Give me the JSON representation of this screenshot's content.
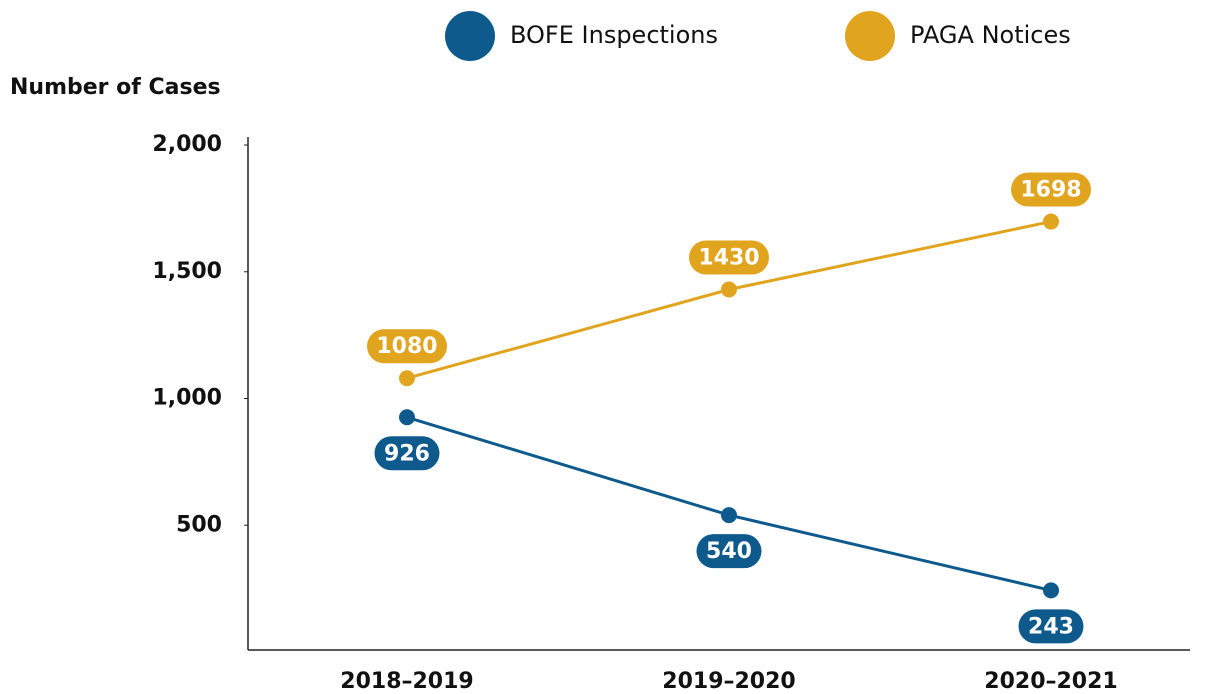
{
  "chart_data": {
    "type": "line",
    "y_label": "Number of Cases",
    "categories": [
      "2018–2019",
      "2019–2020",
      "2020–2021"
    ],
    "series": [
      {
        "name": "BOFE Inspections",
        "color": "#0f5a8c",
        "values": [
          926,
          540,
          243
        ]
      },
      {
        "name": "PAGA Notices",
        "color": "#e1a41e",
        "values": [
          1080,
          1430,
          1698
        ]
      }
    ],
    "ylim": [
      0,
      2000
    ],
    "yticks": [
      500,
      {
        "value": 1000,
        "label": "1,000"
      },
      {
        "value": 1500,
        "label": "1,500"
      },
      {
        "value": 2000,
        "label": "2,000"
      }
    ],
    "grid": false
  }
}
